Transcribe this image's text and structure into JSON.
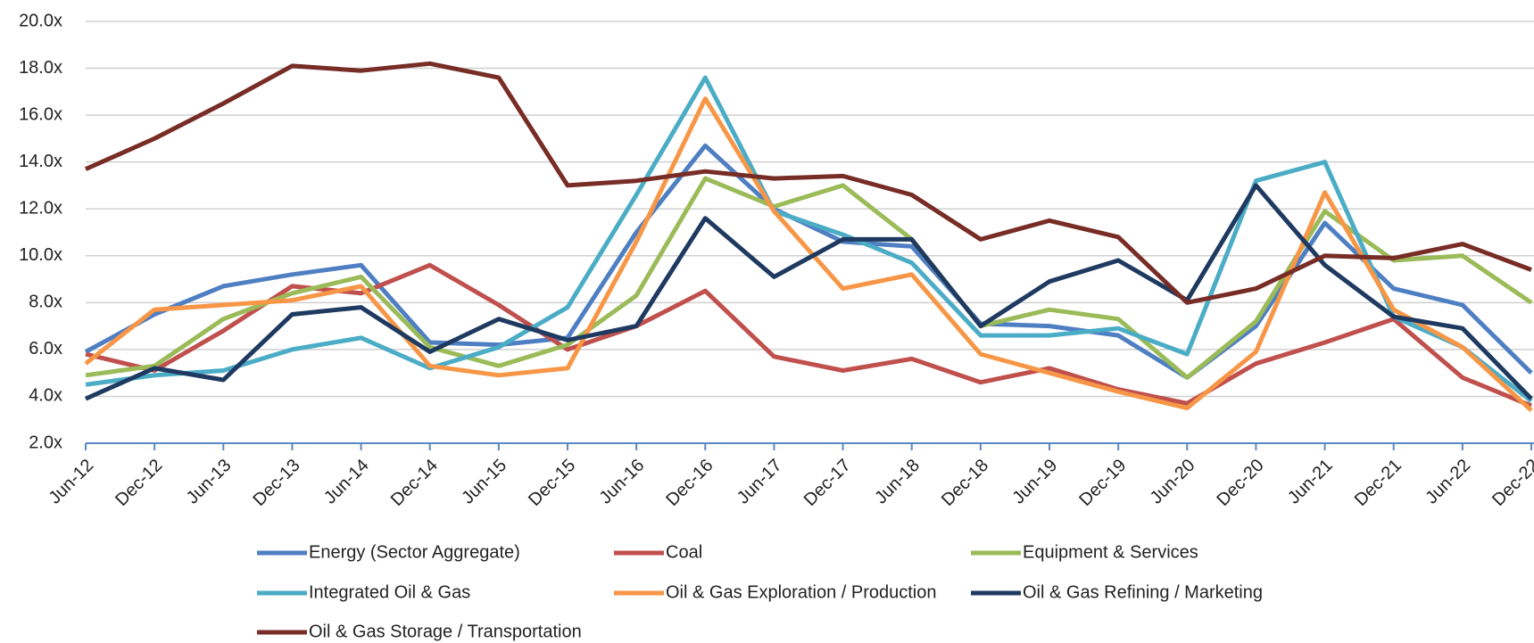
{
  "chart_data": {
    "type": "line",
    "categories": [
      "Jun-12",
      "Dec-12",
      "Jun-13",
      "Dec-13",
      "Jun-14",
      "Dec-14",
      "Jun-15",
      "Dec-15",
      "Jun-16",
      "Dec-16",
      "Jun-17",
      "Dec-17",
      "Jun-18",
      "Dec-18",
      "Jun-19",
      "Dec-19",
      "Jun-20",
      "Dec-20",
      "Jun-21",
      "Dec-21",
      "Jun-22",
      "Dec-22"
    ],
    "series": [
      {
        "name": "Energy (Sector Aggregate)",
        "color": "#4f7fc3",
        "values": [
          5.9,
          7.5,
          8.7,
          9.2,
          9.6,
          6.3,
          6.2,
          6.5,
          11.0,
          14.7,
          12.0,
          10.6,
          10.4,
          7.1,
          7.0,
          6.6,
          4.8,
          7.0,
          11.4,
          8.6,
          7.9,
          5.0
        ]
      },
      {
        "name": "Coal",
        "color": "#c0504d",
        "values": [
          5.8,
          5.1,
          6.8,
          8.7,
          8.4,
          9.6,
          7.9,
          6.0,
          7.0,
          8.5,
          5.7,
          5.1,
          5.6,
          4.6,
          5.2,
          4.3,
          3.7,
          5.4,
          6.3,
          7.3,
          4.8,
          3.6
        ]
      },
      {
        "name": "Equipment & Services",
        "color": "#9bbb59",
        "values": [
          4.9,
          5.3,
          7.3,
          8.4,
          9.1,
          6.1,
          5.3,
          6.2,
          8.3,
          13.3,
          12.1,
          13.0,
          10.7,
          7.0,
          7.7,
          7.3,
          4.8,
          7.2,
          11.9,
          9.8,
          10.0,
          8.0
        ]
      },
      {
        "name": "Integrated Oil & Gas",
        "color": "#4bacc6",
        "values": [
          4.5,
          4.9,
          5.1,
          6.0,
          6.5,
          5.2,
          6.1,
          7.8,
          12.6,
          17.6,
          11.9,
          10.9,
          9.7,
          6.6,
          6.6,
          6.9,
          5.8,
          13.2,
          14.0,
          7.4,
          6.1,
          3.8
        ]
      },
      {
        "name": "Oil & Gas Exploration / Production",
        "color": "#f79646",
        "values": [
          5.4,
          7.7,
          7.9,
          8.1,
          8.7,
          5.3,
          4.9,
          5.2,
          10.6,
          16.7,
          11.9,
          8.6,
          9.2,
          5.8,
          5.0,
          4.2,
          3.5,
          5.9,
          12.7,
          7.7,
          6.1,
          3.4
        ]
      },
      {
        "name": "Oil & Gas Refining / Marketing",
        "color": "#1f3a60",
        "values": [
          3.9,
          5.2,
          4.7,
          7.5,
          7.8,
          5.9,
          7.3,
          6.4,
          7.0,
          11.6,
          9.1,
          10.7,
          10.7,
          7.0,
          8.9,
          9.8,
          8.1,
          13.0,
          9.6,
          7.4,
          6.9,
          3.9
        ]
      },
      {
        "name": "Oil & Gas Storage / Transportation",
        "color": "#772c25",
        "values": [
          13.7,
          15.0,
          16.5,
          18.1,
          17.9,
          18.2,
          17.6,
          13.0,
          13.2,
          13.6,
          13.3,
          13.4,
          12.6,
          10.7,
          11.5,
          10.8,
          8.0,
          8.6,
          10.0,
          9.9,
          10.5,
          9.4
        ]
      }
    ],
    "ylim": [
      2,
      20
    ],
    "yticks": [
      {
        "value": 2,
        "label": "2.0x"
      },
      {
        "value": 4,
        "label": "4.0x"
      },
      {
        "value": 6,
        "label": "6.0x"
      },
      {
        "value": 8,
        "label": "8.0x"
      },
      {
        "value": 10,
        "label": "10.0x"
      },
      {
        "value": 12,
        "label": "12.0x"
      },
      {
        "value": 14,
        "label": "14.0x"
      },
      {
        "value": 16,
        "label": "16.0x"
      },
      {
        "value": 18,
        "label": "18.0x"
      },
      {
        "value": 20,
        "label": "20.0x"
      }
    ],
    "grid": true,
    "legend": "bottom"
  }
}
